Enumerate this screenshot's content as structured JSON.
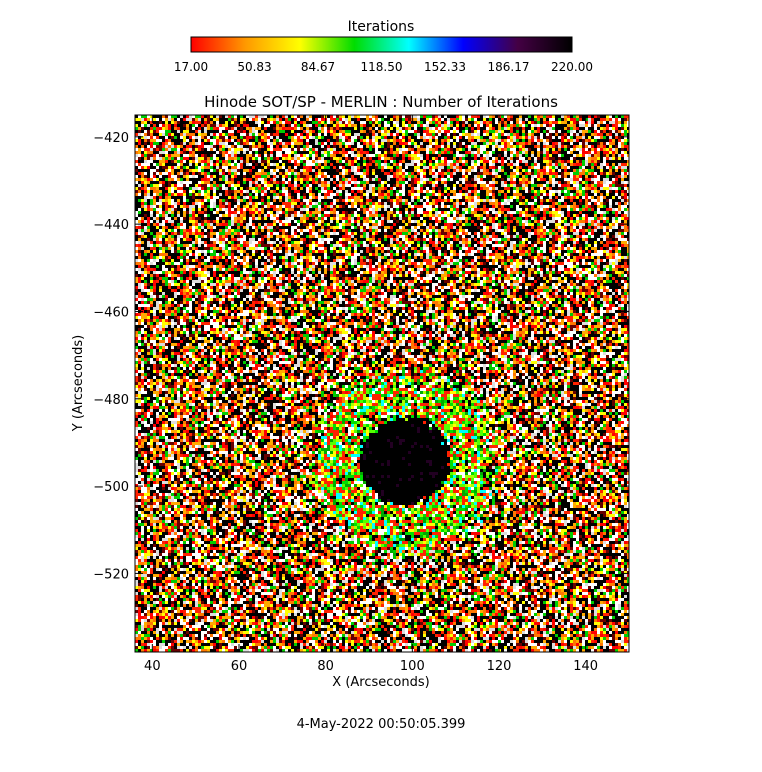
{
  "chart_data": {
    "type": "heatmap",
    "title": "Hinode SOT/SP - MERLIN : Number of Iterations",
    "xlabel": "X (Arcseconds)",
    "ylabel": "Y (Arcseconds)",
    "xlim": [
      36,
      150
    ],
    "ylim": [
      -538,
      -415
    ],
    "x_ticks": [
      40,
      60,
      80,
      100,
      120,
      140
    ],
    "y_ticks": [
      -420,
      -440,
      -460,
      -480,
      -500,
      -520
    ],
    "colorbar": {
      "title": "Iterations",
      "range": [
        17.0,
        220.0
      ],
      "tick_labels": [
        "17.00",
        "50.83",
        "84.67",
        "118.50",
        "152.33",
        "186.17",
        "220.00"
      ],
      "colors": [
        "#ff0000",
        "#ff9900",
        "#ffff00",
        "#00dd00",
        "#00ffff",
        "#0000ff",
        "#440044",
        "#000000"
      ]
    },
    "feature": {
      "description_visible": "sunspot",
      "umbra_center": [
        98,
        -494
      ],
      "umbra_value": 220,
      "penumbra_value": 100,
      "background_values": [
        17,
        220
      ]
    },
    "footer_text": "4-May-2022 00:50:05.399"
  }
}
